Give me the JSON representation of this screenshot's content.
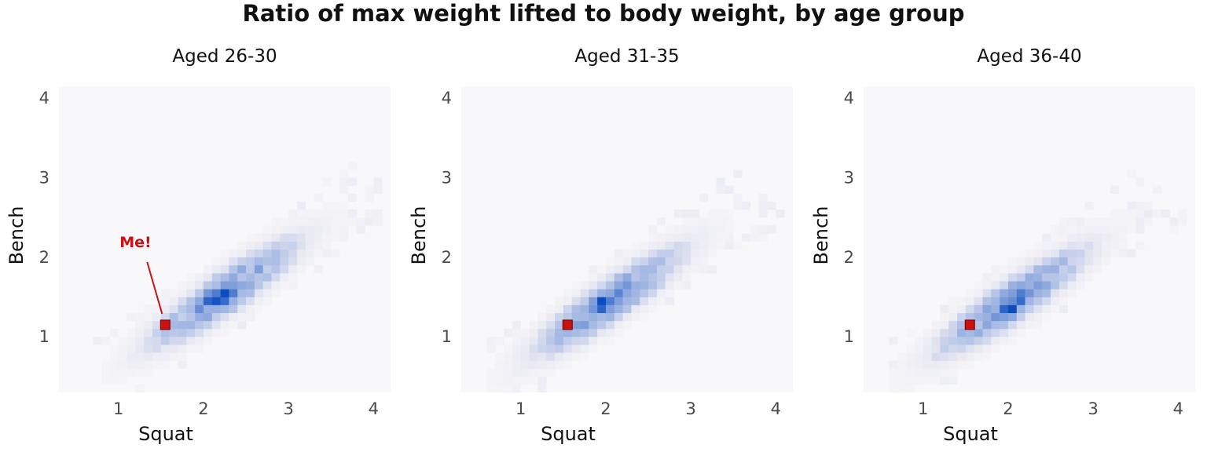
{
  "chart_data": {
    "type": "heatmap",
    "title": "Ratio of max weight lifted to body weight, by age group",
    "xlabel": "Squat",
    "ylabel": "Bench",
    "xlim": [
      0.3,
      4.2
    ],
    "ylim": [
      0.3,
      4.15
    ],
    "xticks": [
      1,
      2,
      3,
      4
    ],
    "yticks": [
      1,
      2,
      3,
      4
    ],
    "bin_width": 0.1,
    "grid": false,
    "colors": {
      "panel_background": "#f8f8fa",
      "low": "#e8e8f2",
      "high": "#0b4cc0",
      "highlight": "#cc1111"
    },
    "highlight_point": {
      "x": 1.55,
      "y": 1.15
    },
    "panels": [
      {
        "subtitle": "Aged 26-30",
        "annotation": "Me!",
        "center": [
          2.25,
          1.55
        ],
        "density_bins": [
          [
            2.25,
            1.55,
            1.0
          ],
          [
            2.15,
            1.45,
            0.95
          ],
          [
            2.05,
            1.45,
            0.85
          ],
          [
            2.25,
            1.45,
            0.8
          ],
          [
            2.35,
            1.55,
            0.7
          ],
          [
            2.15,
            1.55,
            0.7
          ],
          [
            1.95,
            1.35,
            0.6
          ],
          [
            2.05,
            1.55,
            0.55
          ],
          [
            2.35,
            1.65,
            0.5
          ],
          [
            2.45,
            1.65,
            0.45
          ],
          [
            1.95,
            1.45,
            0.45
          ],
          [
            2.25,
            1.65,
            0.5
          ],
          [
            2.55,
            1.75,
            0.35
          ],
          [
            1.85,
            1.35,
            0.35
          ],
          [
            2.45,
            1.55,
            0.35
          ],
          [
            1.85,
            1.25,
            0.3
          ],
          [
            2.65,
            1.75,
            0.3
          ],
          [
            2.55,
            1.85,
            0.28
          ],
          [
            2.75,
            1.85,
            0.25
          ],
          [
            1.75,
            1.25,
            0.25
          ],
          [
            2.35,
            1.35,
            0.3
          ],
          [
            2.05,
            1.35,
            0.4
          ],
          [
            2.15,
            1.35,
            0.4
          ],
          [
            2.45,
            1.75,
            0.3
          ]
        ]
      },
      {
        "subtitle": "Aged 31-35",
        "annotation": "",
        "center": [
          2.05,
          1.45
        ],
        "density_bins": [
          [
            1.95,
            1.45,
            1.0
          ],
          [
            1.95,
            1.35,
            0.85
          ],
          [
            2.05,
            1.45,
            0.7
          ],
          [
            2.15,
            1.55,
            0.65
          ],
          [
            1.85,
            1.35,
            0.55
          ],
          [
            2.25,
            1.65,
            0.55
          ],
          [
            1.85,
            1.45,
            0.5
          ],
          [
            2.05,
            1.35,
            0.5
          ],
          [
            2.15,
            1.45,
            0.5
          ],
          [
            2.25,
            1.55,
            0.45
          ],
          [
            2.35,
            1.65,
            0.4
          ],
          [
            1.75,
            1.25,
            0.35
          ],
          [
            1.95,
            1.25,
            0.35
          ],
          [
            2.45,
            1.75,
            0.35
          ],
          [
            2.55,
            1.75,
            0.3
          ],
          [
            2.35,
            1.75,
            0.3
          ],
          [
            1.85,
            1.25,
            0.4
          ],
          [
            2.05,
            1.55,
            0.45
          ],
          [
            2.65,
            1.85,
            0.25
          ],
          [
            2.75,
            1.95,
            0.22
          ]
        ]
      },
      {
        "subtitle": "Aged 36-40",
        "annotation": "",
        "center": [
          2.05,
          1.45
        ],
        "density_bins": [
          [
            2.05,
            1.35,
            1.0
          ],
          [
            1.95,
            1.35,
            0.85
          ],
          [
            2.15,
            1.45,
            0.8
          ],
          [
            2.15,
            1.55,
            0.7
          ],
          [
            2.05,
            1.45,
            0.6
          ],
          [
            1.85,
            1.25,
            0.55
          ],
          [
            2.25,
            1.55,
            0.55
          ],
          [
            1.95,
            1.25,
            0.5
          ],
          [
            2.35,
            1.65,
            0.5
          ],
          [
            2.45,
            1.65,
            0.45
          ],
          [
            2.05,
            1.25,
            0.45
          ],
          [
            1.75,
            1.25,
            0.4
          ],
          [
            2.25,
            1.65,
            0.4
          ],
          [
            1.85,
            1.35,
            0.4
          ],
          [
            2.55,
            1.75,
            0.3
          ],
          [
            2.45,
            1.75,
            0.3
          ],
          [
            1.65,
            1.15,
            0.3
          ],
          [
            2.65,
            1.85,
            0.25
          ],
          [
            2.75,
            1.95,
            0.22
          ],
          [
            2.85,
            1.95,
            0.2
          ]
        ]
      }
    ]
  }
}
